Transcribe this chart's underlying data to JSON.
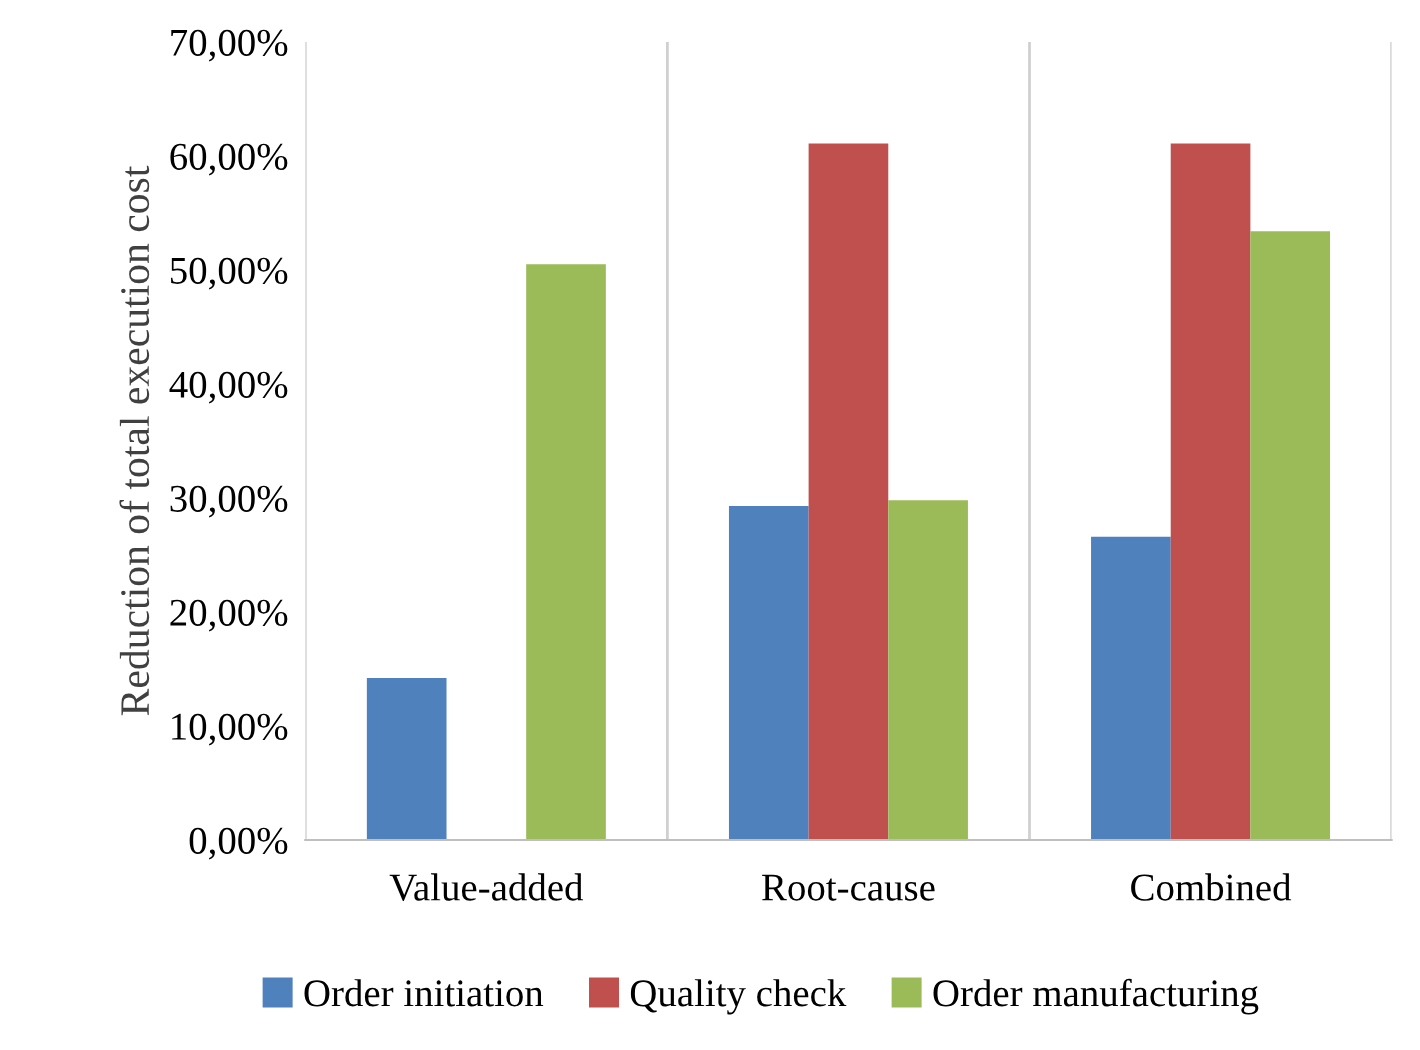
{
  "chart_data": {
    "type": "bar",
    "ylabel": "Reduction of total execution cost",
    "categories": [
      "Value-added",
      "Root-cause",
      "Combined"
    ],
    "series": [
      {
        "name": "Order initiation",
        "color": "#4f81bd",
        "values": [
          14.2,
          29.3,
          26.6
        ]
      },
      {
        "name": "Quality check",
        "color": "#c0504d",
        "values": [
          null,
          61.1,
          61.1
        ]
      },
      {
        "name": "Order manufacturing",
        "color": "#9bbb59",
        "values": [
          50.5,
          29.8,
          53.4
        ]
      }
    ],
    "ylim": [
      0,
      70
    ],
    "yticks": [
      {
        "value": 0,
        "label": "0,00%"
      },
      {
        "value": 10,
        "label": "10,00%"
      },
      {
        "value": 20,
        "label": "20,00%"
      },
      {
        "value": 30,
        "label": "30,00%"
      },
      {
        "value": 40,
        "label": "40,00%"
      },
      {
        "value": 50,
        "label": "50,00%"
      },
      {
        "value": 60,
        "label": "60,00%"
      },
      {
        "value": 70,
        "label": "70,00%"
      }
    ],
    "grid": "x",
    "legend": "bottom"
  }
}
